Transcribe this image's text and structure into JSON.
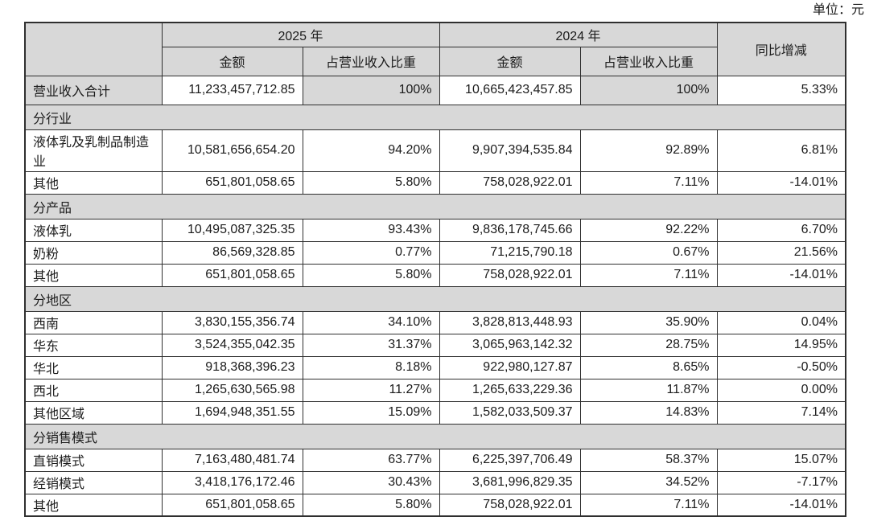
{
  "unit_label": "单位：元",
  "table": {
    "headers": {
      "year_2025": "2025 年",
      "year_2024": "2024 年",
      "yoy": "同比增减",
      "amount": "金额",
      "pct": "占营业收入比重"
    },
    "rows": [
      {
        "type": "total",
        "label": "营业收入合计",
        "a2025": "11,233,457,712.85",
        "p2025": "100%",
        "a2024": "10,665,423,457.85",
        "p2024": "100%",
        "yoy": "5.33%"
      },
      {
        "type": "section",
        "label": "分行业"
      },
      {
        "type": "data",
        "tall": true,
        "label": "液体乳及乳制品制造业",
        "a2025": "10,581,656,654.20",
        "p2025": "94.20%",
        "a2024": "9,907,394,535.84",
        "p2024": "92.89%",
        "yoy": "6.81%"
      },
      {
        "type": "data",
        "label": "其他",
        "a2025": "651,801,058.65",
        "p2025": "5.80%",
        "a2024": "758,028,922.01",
        "p2024": "7.11%",
        "yoy": "-14.01%"
      },
      {
        "type": "section",
        "label": "分产品"
      },
      {
        "type": "data",
        "label": "液体乳",
        "a2025": "10,495,087,325.35",
        "p2025": "93.43%",
        "a2024": "9,836,178,745.66",
        "p2024": "92.22%",
        "yoy": "6.70%"
      },
      {
        "type": "data",
        "label": "奶粉",
        "a2025": "86,569,328.85",
        "p2025": "0.77%",
        "a2024": "71,215,790.18",
        "p2024": "0.67%",
        "yoy": "21.56%"
      },
      {
        "type": "data",
        "label": "其他",
        "a2025": "651,801,058.65",
        "p2025": "5.80%",
        "a2024": "758,028,922.01",
        "p2024": "7.11%",
        "yoy": "-14.01%"
      },
      {
        "type": "section",
        "label": "分地区"
      },
      {
        "type": "data",
        "label": "西南",
        "a2025": "3,830,155,356.74",
        "p2025": "34.10%",
        "a2024": "3,828,813,448.93",
        "p2024": "35.90%",
        "yoy": "0.04%"
      },
      {
        "type": "data",
        "label": "华东",
        "a2025": "3,524,355,042.35",
        "p2025": "31.37%",
        "a2024": "3,065,963,142.32",
        "p2024": "28.75%",
        "yoy": "14.95%"
      },
      {
        "type": "data",
        "label": "华北",
        "a2025": "918,368,396.23",
        "p2025": "8.18%",
        "a2024": "922,980,127.87",
        "p2024": "8.65%",
        "yoy": "-0.50%"
      },
      {
        "type": "data",
        "label": "西北",
        "a2025": "1,265,630,565.98",
        "p2025": "11.27%",
        "a2024": "1,265,633,229.36",
        "p2024": "11.87%",
        "yoy": "0.00%"
      },
      {
        "type": "data",
        "label": "其他区域",
        "a2025": "1,694,948,351.55",
        "p2025": "15.09%",
        "a2024": "1,582,033,509.37",
        "p2024": "14.83%",
        "yoy": "7.14%"
      },
      {
        "type": "section",
        "label": "分销售模式"
      },
      {
        "type": "data",
        "label": "直销模式",
        "a2025": "7,163,480,481.74",
        "p2025": "63.77%",
        "a2024": "6,225,397,706.49",
        "p2024": "58.37%",
        "yoy": "15.07%"
      },
      {
        "type": "data",
        "label": "经销模式",
        "a2025": "3,418,176,172.46",
        "p2025": "30.43%",
        "a2024": "3,681,996,829.35",
        "p2024": "34.52%",
        "yoy": "-7.17%"
      },
      {
        "type": "data",
        "label": "其他",
        "a2025": "651,801,058.65",
        "p2025": "5.80%",
        "a2024": "758,028,922.01",
        "p2024": "7.11%",
        "yoy": "-14.01%"
      }
    ]
  }
}
